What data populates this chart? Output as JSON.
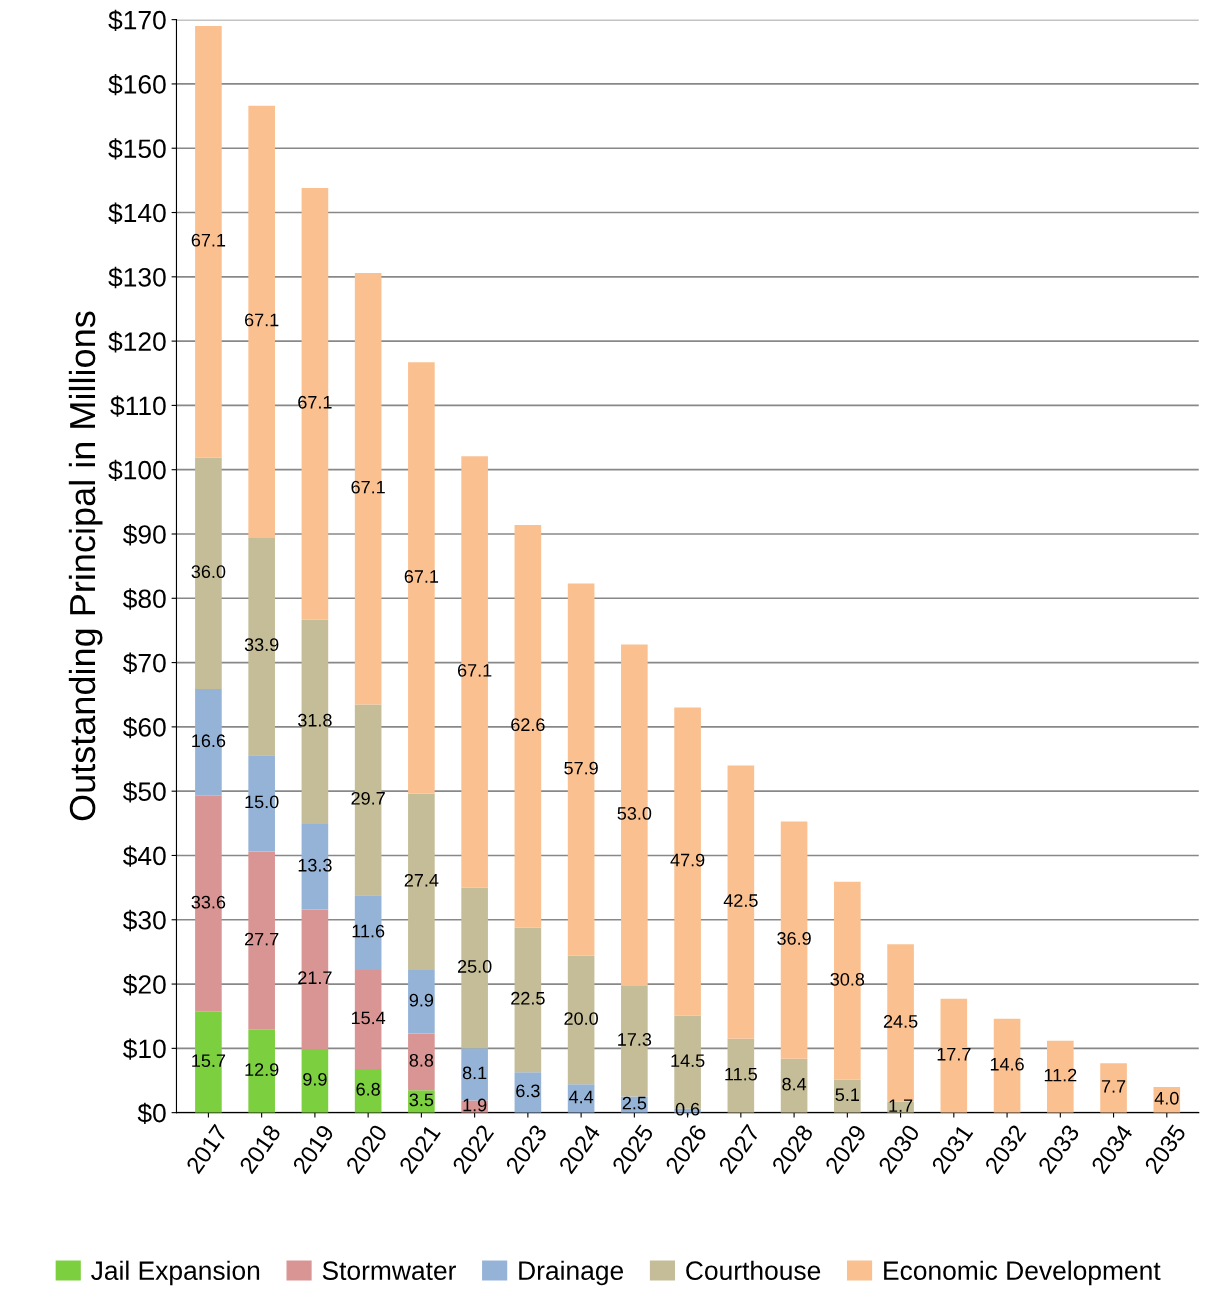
{
  "chart_data": {
    "type": "bar",
    "stacked": true,
    "ylabel": "Outstanding Principal in Millions",
    "categories": [
      "2017",
      "2018",
      "2019",
      "2020",
      "2021",
      "2022",
      "2023",
      "2024",
      "2025",
      "2026",
      "2027",
      "2028",
      "2029",
      "2030",
      "2031",
      "2032",
      "2033",
      "2034",
      "2035"
    ],
    "series": [
      {
        "name": "Jail Expansion",
        "color": "#7ccf3f",
        "values": [
          15.7,
          12.9,
          9.9,
          6.8,
          3.5,
          null,
          null,
          null,
          null,
          null,
          null,
          null,
          null,
          null,
          null,
          null,
          null,
          null,
          null
        ],
        "value_labels": [
          "15.7",
          "12.9",
          "9.9",
          "6.8",
          "3.5",
          null,
          null,
          null,
          null,
          null,
          null,
          null,
          null,
          null,
          null,
          null,
          null,
          null,
          null
        ]
      },
      {
        "name": "Stormwater",
        "color": "#d99594",
        "values": [
          33.6,
          27.7,
          21.7,
          15.4,
          8.8,
          1.9,
          null,
          null,
          null,
          null,
          null,
          null,
          null,
          null,
          null,
          null,
          null,
          null,
          null
        ],
        "value_labels": [
          "33.6",
          "27.7",
          "21.7",
          "15.4",
          "8.8",
          "1.9",
          null,
          null,
          null,
          null,
          null,
          null,
          null,
          null,
          null,
          null,
          null,
          null,
          null
        ]
      },
      {
        "name": "Drainage",
        "color": "#95b3d7",
        "values": [
          16.6,
          15.0,
          13.3,
          11.6,
          9.9,
          8.1,
          6.3,
          4.4,
          2.5,
          0.6,
          null,
          null,
          null,
          null,
          null,
          null,
          null,
          null,
          null
        ],
        "value_labels": [
          "16.6",
          "15.0",
          "13.3",
          "11.6",
          "9.9",
          "8.1",
          "6.3",
          "4.4",
          "2.5",
          "0.6",
          null,
          null,
          null,
          null,
          null,
          null,
          null,
          null,
          null
        ]
      },
      {
        "name": "Courthouse",
        "color": "#c4bd97",
        "values": [
          36.0,
          33.9,
          31.8,
          29.7,
          27.4,
          25.0,
          22.5,
          20.0,
          17.3,
          14.5,
          11.5,
          8.4,
          5.1,
          1.7,
          null,
          null,
          null,
          null,
          null
        ],
        "value_labels": [
          "36.0",
          "33.9",
          "31.8",
          "29.7",
          "27.4",
          "25.0",
          "22.5",
          "20.0",
          "17.3",
          "14.5",
          "11.5",
          "8.4",
          "5.1",
          "1.7",
          null,
          null,
          null,
          null,
          null
        ]
      },
      {
        "name": "Economic Development",
        "color": "#fac090",
        "values": [
          67.1,
          67.1,
          67.1,
          67.1,
          67.1,
          67.1,
          62.6,
          57.9,
          53.0,
          47.9,
          42.5,
          36.9,
          30.8,
          24.5,
          17.7,
          14.6,
          11.2,
          7.7,
          4.0
        ],
        "value_labels": [
          "67.1",
          "67.1",
          "67.1",
          "67.1",
          "67.1",
          "67.1",
          "62.6",
          "57.9",
          "53.0",
          "47.9",
          "42.5",
          "36.9",
          "30.8",
          "24.5",
          "17.7",
          "14.6",
          "11.2",
          "7.7",
          "4.0"
        ]
      }
    ],
    "ylim": [
      0,
      170
    ],
    "yticks": [
      {
        "value": 0,
        "label": "$0"
      },
      {
        "value": 10,
        "label": "$10"
      },
      {
        "value": 20,
        "label": "$20"
      },
      {
        "value": 30,
        "label": "$30"
      },
      {
        "value": 40,
        "label": "$40"
      },
      {
        "value": 50,
        "label": "$50"
      },
      {
        "value": 60,
        "label": "$60"
      },
      {
        "value": 70,
        "label": "$70"
      },
      {
        "value": 80,
        "label": "$80"
      },
      {
        "value": 90,
        "label": "$90"
      },
      {
        "value": 100,
        "label": "$100"
      },
      {
        "value": 110,
        "label": "$110"
      },
      {
        "value": 120,
        "label": "$120"
      },
      {
        "value": 130,
        "label": "$130"
      },
      {
        "value": 140,
        "label": "$140"
      },
      {
        "value": 150,
        "label": "$150"
      },
      {
        "value": 160,
        "label": "$160"
      },
      {
        "value": 170,
        "label": "$170"
      }
    ],
    "grid": "y",
    "legend": "bottom"
  }
}
